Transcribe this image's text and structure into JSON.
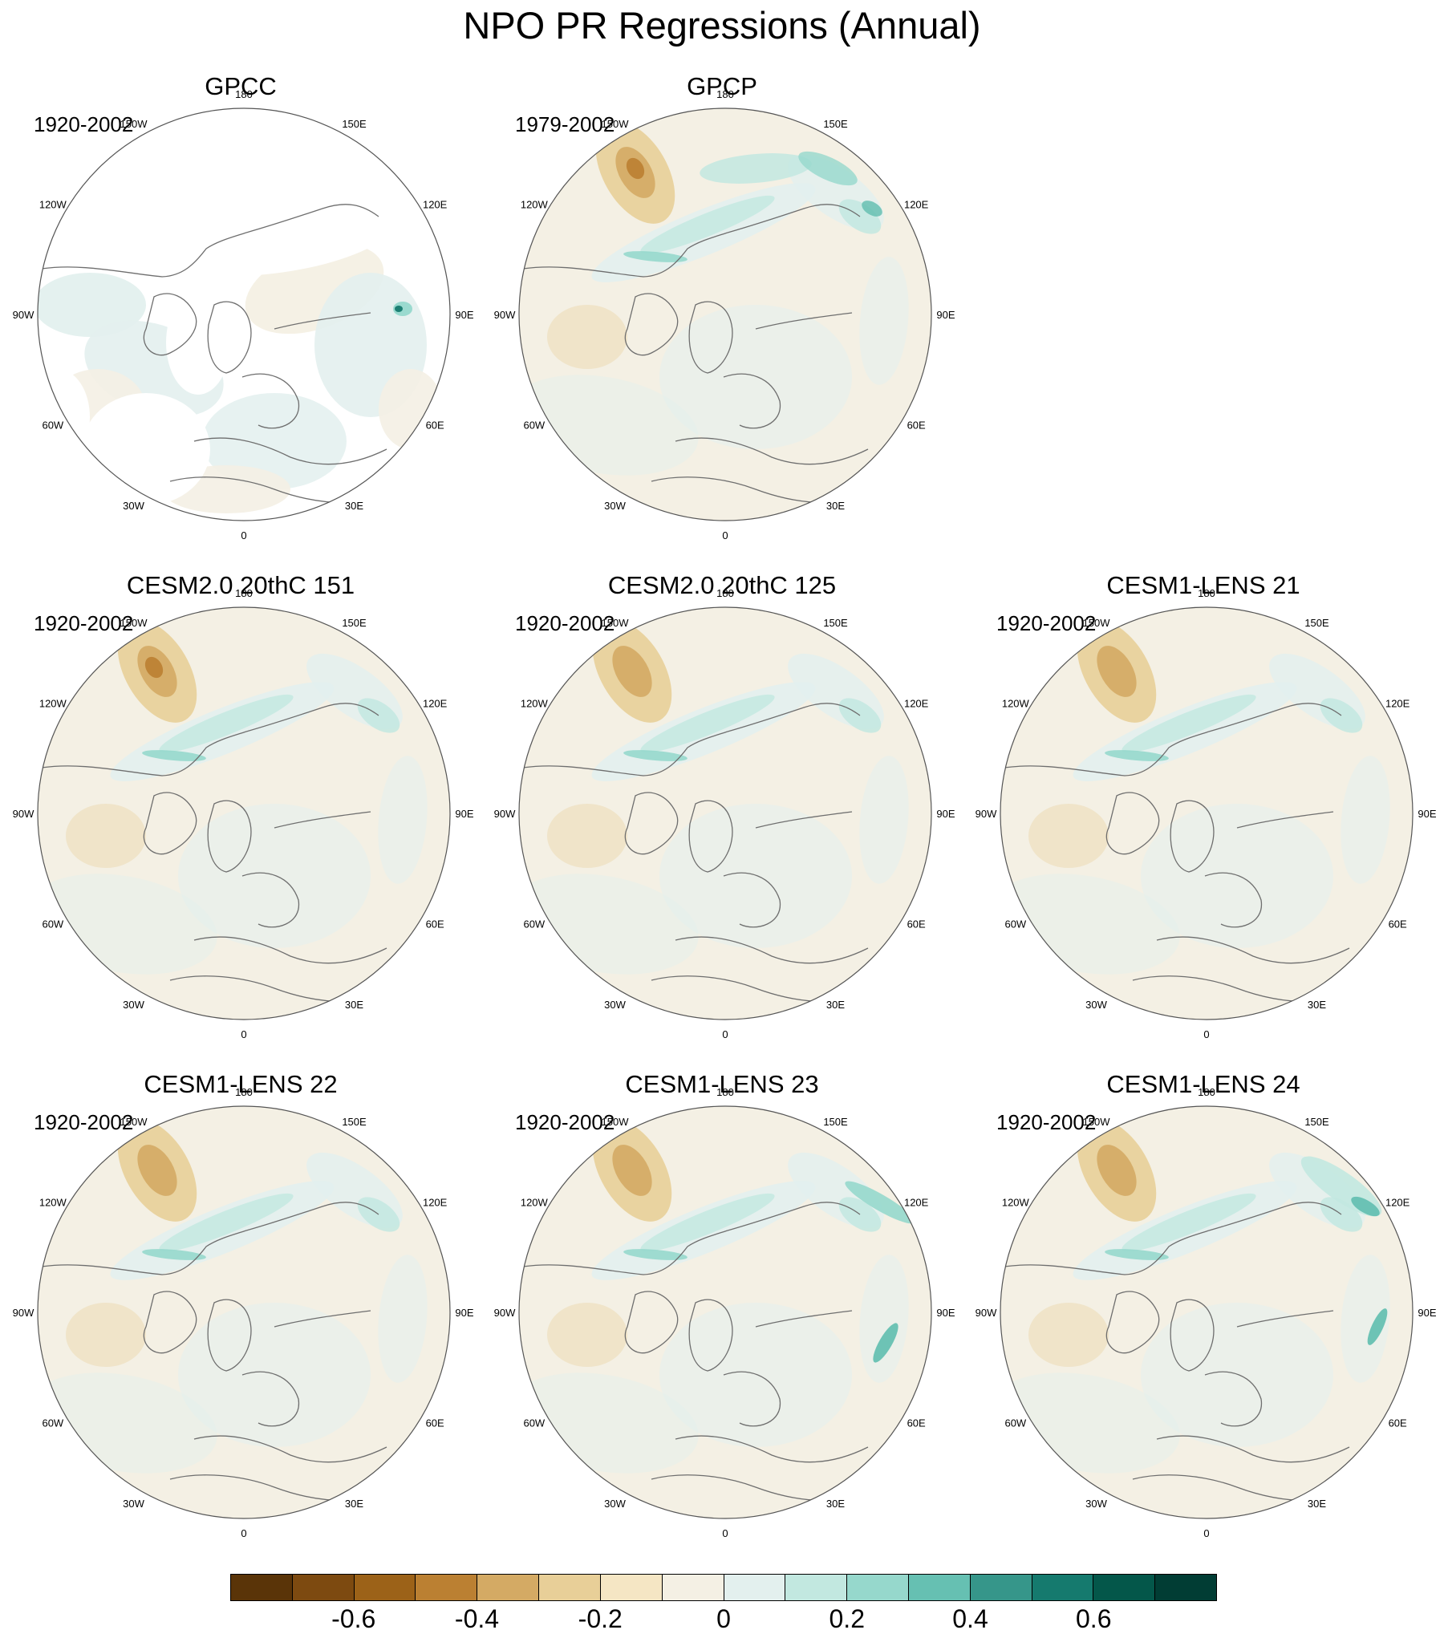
{
  "title": "NPO PR Regressions (Annual)",
  "lon_labels": [
    "180",
    "150E",
    "120E",
    "90E",
    "60E",
    "30E",
    "0",
    "30W",
    "60W",
    "90W",
    "120W",
    "150W"
  ],
  "panels": [
    {
      "title": "GPCC",
      "period": "1920-2002",
      "style": "gpcc"
    },
    {
      "title": "GPCP",
      "period": "1979-2002",
      "style": "gpcp"
    },
    {
      "title": "CESM2.0 20thC 151",
      "period": "1920-2002",
      "style": "model"
    },
    {
      "title": "CESM2.0 20thC 125",
      "period": "1920-2002",
      "style": "model"
    },
    {
      "title": "CESM1-LENS 21",
      "period": "1920-2002",
      "style": "model"
    },
    {
      "title": "CESM1-LENS 22",
      "period": "1920-2002",
      "style": "model"
    },
    {
      "title": "CESM1-LENS 23",
      "period": "1920-2002",
      "style": "model"
    },
    {
      "title": "CESM1-LENS 24",
      "period": "1920-2002",
      "style": "model"
    }
  ],
  "colorbar": {
    "colors": [
      "#5a3408",
      "#7d4a10",
      "#9c6218",
      "#bb8032",
      "#d4aa64",
      "#e8cf98",
      "#f5e6c4",
      "#f4f0e4",
      "#e3f0ee",
      "#c2e8e0",
      "#96d8cc",
      "#66c0b2",
      "#36968a",
      "#157a6e",
      "#04574a",
      "#013d34"
    ],
    "tick_labels": [
      "-0.6",
      "-0.4",
      "-0.2",
      "0",
      "0.2",
      "0.4",
      "0.6"
    ],
    "tick_values": [
      -0.6,
      -0.4,
      -0.2,
      0,
      0.2,
      0.4,
      0.6
    ],
    "levels": [
      -0.7,
      -0.6,
      -0.5,
      -0.4,
      -0.3,
      -0.2,
      -0.1,
      0,
      0.1,
      0.2,
      0.3,
      0.4,
      0.5,
      0.6,
      0.7
    ]
  }
}
